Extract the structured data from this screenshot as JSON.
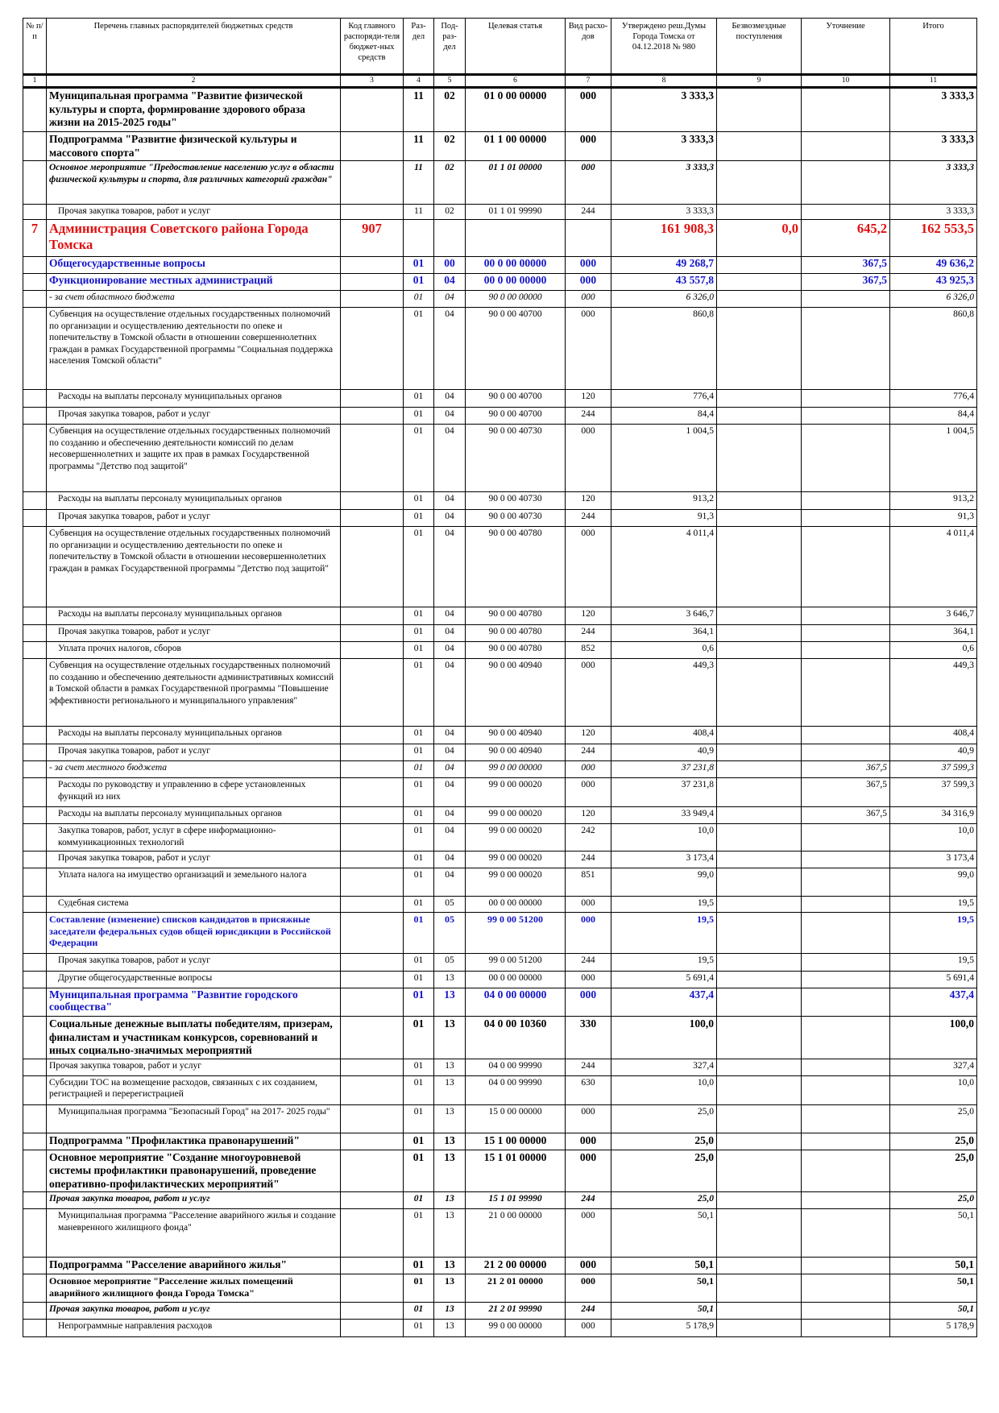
{
  "table": {
    "header": [
      "№ п/п",
      "Перечень главных распорядителей бюджетных средств",
      "Код главного распоряди-теля бюджет-ных средств",
      "Раз-дел",
      "Под-раз-дел",
      "Целевая статья",
      "Вид расхо-дов",
      "Утверждено реш.Думы Города Томска от 04.12.2018 № 980",
      "Безвозмездные поступления",
      "Уточнение",
      "Итого"
    ],
    "numbers": [
      1,
      2,
      3,
      4,
      5,
      6,
      7,
      8,
      9,
      10,
      11
    ],
    "rows": [
      [
        null,
        "Муниципальная программа \"Развитие физической культуры и спорта, формирование здорового образа жизни на 2015-2025 годы\"",
        null,
        "11",
        "02",
        "01 0 00 00000",
        "000",
        "3 333,3",
        null,
        null,
        "3 333,3"
      ],
      [
        null,
        "Подпрограмма \"Развитие физической культуры и массового спорта\"",
        null,
        "11",
        "02",
        "01 1 00 00000",
        "000",
        "3 333,3",
        null,
        null,
        "3 333,3"
      ],
      [
        null,
        "Основное мероприятие \"Предоставление населению услуг в области физической культуры и спорта, для различных категорий граждан\"",
        null,
        "11",
        "02",
        "01 1 01 00000",
        "000",
        "3 333,3",
        null,
        null,
        "3 333,3"
      ],
      [
        null,
        "Прочая закупка товаров, работ и услуг",
        null,
        "11",
        "02",
        "01 1 01 99990",
        "244",
        "3 333,3",
        null,
        null,
        "3 333,3"
      ],
      [
        "7",
        "Администрация Советского района Города Томска",
        "907",
        null,
        null,
        null,
        null,
        "161 908,3",
        "0,0",
        "645,2",
        "162 553,5"
      ],
      [
        null,
        "Общегосударственные вопросы",
        null,
        "01",
        "00",
        "00 0 00 00000",
        "000",
        "49 268,7",
        null,
        "367,5",
        "49 636,2"
      ],
      [
        null,
        "Функционирование местных администраций",
        null,
        "01",
        "04",
        "00 0 00 00000",
        "000",
        "43 557,8",
        null,
        "367,5",
        "43 925,3"
      ],
      [
        null,
        "- за счет областного бюджета",
        null,
        "01",
        "04",
        "90 0 00 00000",
        "000",
        "6 326,0",
        null,
        null,
        "6 326,0"
      ],
      [
        null,
        "Субвенция на осуществление отдельных государственных полномочий по организации и осуществлению деятельности по опеке и попечительству в Томской области в отношении совершеннолетних граждан в рамках Государственной программы \"Социальная поддержка населения Томской области\"",
        null,
        "01",
        "04",
        "90 0 00 40700",
        "000",
        "860,8",
        null,
        null,
        "860,8"
      ],
      [
        null,
        "Расходы на выплаты персоналу муниципальных органов",
        null,
        "01",
        "04",
        "90 0 00 40700",
        "120",
        "776,4",
        null,
        null,
        "776,4"
      ],
      [
        null,
        "Прочая закупка товаров, работ и услуг",
        null,
        "01",
        "04",
        "90 0 00 40700",
        "244",
        "84,4",
        null,
        null,
        "84,4"
      ],
      [
        null,
        "Субвенция на осуществление отдельных государственных полномочий по созданию и обеспечению деятельности комиссий по делам несовершеннолетних и защите их прав в рамках Государственной программы \"Детство под защитой\"",
        null,
        "01",
        "04",
        "90 0 00 40730",
        "000",
        "1 004,5",
        null,
        null,
        "1 004,5"
      ],
      [
        null,
        "Расходы на выплаты персоналу муниципальных органов",
        null,
        "01",
        "04",
        "90 0 00 40730",
        "120",
        "913,2",
        null,
        null,
        "913,2"
      ],
      [
        null,
        "Прочая закупка товаров, работ и услуг",
        null,
        "01",
        "04",
        "90 0 00 40730",
        "244",
        "91,3",
        null,
        null,
        "91,3"
      ],
      [
        null,
        "Субвенция на осуществление отдельных государственных полномочий по организации и осуществлению деятельности по опеке и попечительству в Томской области в отношении несовершеннолетних граждан в рамках Государственной программы \"Детство под защитой\"",
        null,
        "01",
        "04",
        "90 0 00 40780",
        "000",
        "4 011,4",
        null,
        null,
        "4 011,4"
      ],
      [
        null,
        "Расходы на выплаты персоналу муниципальных органов",
        null,
        "01",
        "04",
        "90 0 00 40780",
        "120",
        "3 646,7",
        null,
        null,
        "3 646,7"
      ],
      [
        null,
        "Прочая закупка товаров, работ и услуг",
        null,
        "01",
        "04",
        "90 0 00 40780",
        "244",
        "364,1",
        null,
        null,
        "364,1"
      ],
      [
        null,
        "Уплата прочих налогов, сборов",
        null,
        "01",
        "04",
        "90 0 00 40780",
        "852",
        "0,6",
        null,
        null,
        "0,6"
      ],
      [
        null,
        "Субвенция на осуществление отдельных государственных полномочий по созданию и обеспечению деятельности административных комиссий в Томской области в рамках Государственной программы \"Повышение эффективности регионального и муниципального управления\"",
        null,
        "01",
        "04",
        "90 0 00 40940",
        "000",
        "449,3",
        null,
        null,
        "449,3"
      ],
      [
        null,
        "Расходы на выплаты персоналу муниципальных органов",
        null,
        "01",
        "04",
        "90 0 00 40940",
        "120",
        "408,4",
        null,
        null,
        "408,4"
      ],
      [
        null,
        "Прочая закупка товаров, работ и услуг",
        null,
        "01",
        "04",
        "90 0 00 40940",
        "244",
        "40,9",
        null,
        null,
        "40,9"
      ],
      [
        null,
        "- за счет местного бюджета",
        null,
        "01",
        "04",
        "99 0 00 00000",
        "000",
        "37 231,8",
        null,
        "367,5",
        "37 599,3"
      ],
      [
        null,
        "Расходы по руководству и управлению в сфере установленных функций из них",
        null,
        "01",
        "04",
        "99 0 00 00020",
        "000",
        "37 231,8",
        null,
        "367,5",
        "37 599,3"
      ],
      [
        null,
        "Расходы на выплаты персоналу муниципальных органов",
        null,
        "01",
        "04",
        "99 0 00 00020",
        "120",
        "33 949,4",
        null,
        "367,5",
        "34 316,9"
      ],
      [
        null,
        "Закупка товаров, работ, услуг в сфере информационно-коммуникационных технологий",
        null,
        "01",
        "04",
        "99 0 00 00020",
        "242",
        "10,0",
        null,
        null,
        "10,0"
      ],
      [
        null,
        "Прочая закупка товаров, работ и услуг",
        null,
        "01",
        "04",
        "99 0 00 00020",
        "244",
        "3 173,4",
        null,
        null,
        "3 173,4"
      ],
      [
        null,
        "Уплата налога на имущество организаций и земельного налога",
        null,
        "01",
        "04",
        "99 0 00 00020",
        "851",
        "99,0",
        null,
        null,
        "99,0"
      ],
      [
        null,
        "Судебная система",
        null,
        "01",
        "05",
        "00 0 00 00000",
        "000",
        "19,5",
        null,
        null,
        "19,5"
      ],
      [
        null,
        "Составление (изменение) списков кандидатов в присяжные заседатели федеральных судов общей юрисдикции в Российской Федерации",
        null,
        "01",
        "05",
        "99 0 00 51200",
        "000",
        "19,5",
        null,
        null,
        "19,5"
      ],
      [
        null,
        "Прочая закупка товаров, работ и услуг",
        null,
        "01",
        "05",
        "99 0 00 51200",
        "244",
        "19,5",
        null,
        null,
        "19,5"
      ],
      [
        null,
        "Другие общегосударственные вопросы",
        null,
        "01",
        "13",
        "00 0 00 00000",
        "000",
        "5 691,4",
        null,
        null,
        "5 691,4"
      ],
      [
        null,
        "Муниципальная программа \"Развитие городского сообщества\"",
        null,
        "01",
        "13",
        "04 0 00 00000",
        "000",
        "437,4",
        null,
        null,
        "437,4"
      ],
      [
        null,
        "Социальные денежные выплаты победителям, призерам, финалистам и участникам конкурсов, соревнований и иных социально-значимых мероприятий",
        null,
        "01",
        "13",
        "04 0 00 10360",
        "330",
        "100,0",
        null,
        null,
        "100,0"
      ],
      [
        null,
        "Прочая закупка товаров, работ и услуг",
        null,
        "01",
        "13",
        "04 0 00 99990",
        "244",
        "327,4",
        null,
        null,
        "327,4"
      ],
      [
        null,
        "Субсидии ТОС на возмещение расходов, связанных с их созданием, регистрацией и перерегистрацией",
        null,
        "01",
        "13",
        "04 0 00 99990",
        "630",
        "10,0",
        null,
        null,
        "10,0"
      ],
      [
        null,
        "Муниципальная программа \"Безопасный Город\" на 2017- 2025 годы\"",
        null,
        "01",
        "13",
        "15 0 00 00000",
        "000",
        "25,0",
        null,
        null,
        "25,0"
      ],
      [
        null,
        "Подпрограмма \"Профилактика правонарушений\"",
        null,
        "01",
        "13",
        "15 1 00 00000",
        "000",
        "25,0",
        null,
        null,
        "25,0"
      ],
      [
        null,
        "Основное мероприятие \"Создание многоуровневой системы профилактики правонарушений, проведение оперативно-профилактических мероприятий\"",
        null,
        "01",
        "13",
        "15 1 01 00000",
        "000",
        "25,0",
        null,
        null,
        "25,0"
      ],
      [
        null,
        "Прочая закупка товаров, работ и услуг",
        null,
        "01",
        "13",
        "15 1 01 99990",
        "244",
        "25,0",
        null,
        null,
        "25,0"
      ],
      [
        null,
        "Муниципальная программа \"Расселение аварийного жилья и создание маневренного жилищного фонда\"",
        null,
        "01",
        "13",
        "21 0 00 00000",
        "000",
        "50,1",
        null,
        null,
        "50,1"
      ],
      [
        null,
        "Подпрограмма \"Расселение аварийного жилья\"",
        null,
        "01",
        "13",
        "21 2 00 00000",
        "000",
        "50,1",
        null,
        null,
        "50,1"
      ],
      [
        null,
        "Основное мероприятие \"Расселение жилых помещений аварийного жилищного фонда Города Томска\"",
        null,
        "01",
        "13",
        "21 2 01 00000",
        "000",
        "50,1",
        null,
        null,
        "50,1"
      ],
      [
        null,
        "Прочая закупка товаров, работ и услуг",
        null,
        "01",
        "13",
        "21 2 01 99990",
        "244",
        "50,1",
        null,
        null,
        "50,1"
      ],
      [
        null,
        "Непрограммные направления расходов",
        null,
        "01",
        "13",
        "99 0 00 00000",
        "000",
        "5 178,9",
        null,
        null,
        "5 178,9"
      ]
    ]
  }
}
